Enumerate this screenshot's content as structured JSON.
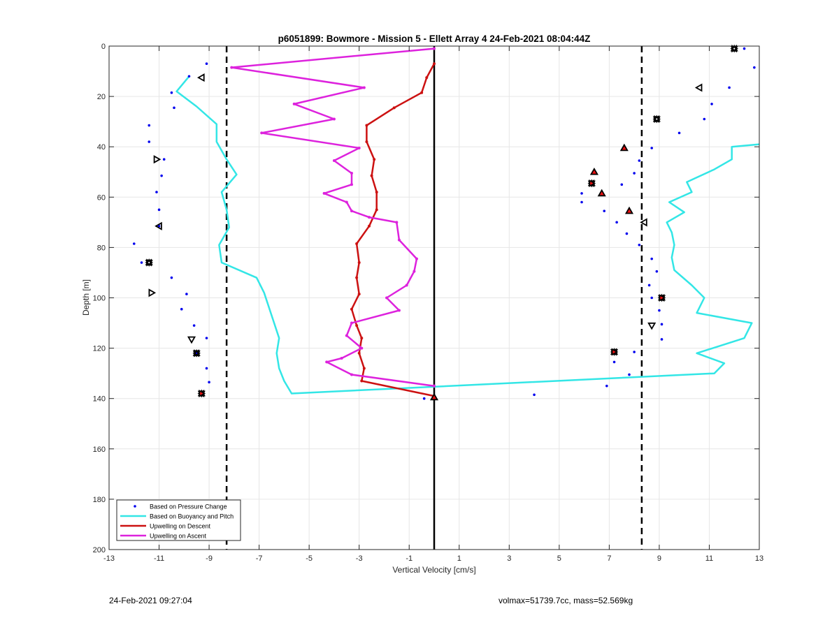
{
  "chart_data": {
    "type": "scatter",
    "title": "p6051899: Bowmore - Mission 5 - Ellett Array 4 24-Feb-2021 08:04:44Z",
    "xlabel": "Vertical Velocity [cm/s]",
    "ylabel": "Depth [m]",
    "xlim": [
      -13,
      13
    ],
    "ylim": [
      200,
      0
    ],
    "x_ticks": [
      -13,
      -11,
      -9,
      -7,
      -5,
      -3,
      -1,
      1,
      3,
      5,
      7,
      9,
      11,
      13
    ],
    "y_ticks": [
      0,
      20,
      40,
      60,
      80,
      100,
      120,
      140,
      160,
      180,
      200
    ],
    "grid": true,
    "legend_position": "bottom-left",
    "reference_lines": {
      "solid_x": 0,
      "dashed_x": [
        -8.3,
        8.3
      ]
    },
    "colors": {
      "pressure": "#0000ee",
      "buoyancy": "#33e6e6",
      "descent": "#cc1111",
      "ascent": "#dd22dd",
      "marker_fill": "#ee1111"
    },
    "series": [
      {
        "name": "Based on Pressure Change",
        "style": "dots",
        "segments": [
          [
            [
              -9.1,
              7
            ],
            [
              -9.8,
              12
            ],
            [
              -10.5,
              18.5
            ],
            [
              -10.4,
              24.5
            ],
            [
              -11.4,
              31.5
            ],
            [
              -11.4,
              38
            ],
            [
              -10.8,
              45
            ],
            [
              -10.9,
              51.5
            ],
            [
              -11.1,
              58
            ],
            [
              -11.0,
              65
            ],
            [
              -11.0,
              71.5
            ],
            [
              -12.0,
              78.5
            ],
            [
              -11.7,
              86
            ],
            [
              -10.5,
              92
            ],
            [
              -9.9,
              98.5
            ],
            [
              -10.1,
              104.5
            ],
            [
              -9.6,
              111
            ],
            [
              -9.1,
              116
            ],
            [
              -9.5,
              122
            ],
            [
              -9.1,
              128
            ],
            [
              -9.0,
              133.5
            ],
            [
              -9.3,
              138
            ],
            [
              -0.4,
              140
            ]
          ],
          [
            [
              12.4,
              1
            ],
            [
              12.8,
              8.5
            ],
            [
              11.8,
              16.5
            ],
            [
              11.1,
              23
            ],
            [
              10.8,
              29
            ],
            [
              9.8,
              34.5
            ],
            [
              8.7,
              40.5
            ],
            [
              8.2,
              45.5
            ],
            [
              8.0,
              50.5
            ],
            [
              7.5,
              55
            ],
            [
              5.9,
              58.5
            ],
            [
              5.9,
              62
            ],
            [
              6.8,
              65.5
            ],
            [
              7.3,
              70
            ],
            [
              7.7,
              74.5
            ],
            [
              8.2,
              79
            ],
            [
              8.7,
              84.5
            ],
            [
              8.9,
              89.5
            ],
            [
              8.6,
              95
            ],
            [
              8.7,
              100
            ],
            [
              9.0,
              105
            ],
            [
              9.1,
              110.5
            ],
            [
              9.1,
              116.5
            ],
            [
              8.0,
              121.5
            ],
            [
              7.2,
              125.5
            ],
            [
              7.8,
              130.5
            ],
            [
              6.9,
              135
            ],
            [
              4.0,
              138.5
            ]
          ]
        ]
      },
      {
        "name": "Based on Buoyancy and Pitch",
        "style": "line",
        "segments": [
          [
            [
              -9.8,
              12
            ],
            [
              -10.3,
              18
            ],
            [
              -9.5,
              24
            ],
            [
              -8.7,
              31
            ],
            [
              -8.7,
              38
            ],
            [
              -8.3,
              45
            ],
            [
              -7.9,
              51
            ],
            [
              -8.5,
              58
            ],
            [
              -8.3,
              65
            ],
            [
              -8.2,
              72
            ],
            [
              -8.6,
              79
            ],
            [
              -8.5,
              86
            ],
            [
              -7.1,
              92
            ],
            [
              -6.8,
              98
            ],
            [
              -6.6,
              104
            ],
            [
              -6.4,
              110
            ],
            [
              -6.2,
              116
            ],
            [
              -6.3,
              122
            ],
            [
              -6.2,
              128
            ],
            [
              -6.0,
              133
            ],
            [
              -5.7,
              138
            ],
            [
              11.2,
              130
            ],
            [
              11.6,
              126
            ],
            [
              10.5,
              122
            ],
            [
              12.4,
              116
            ],
            [
              12.7,
              110
            ],
            [
              10.5,
              106
            ],
            [
              10.8,
              100
            ],
            [
              10.3,
              95
            ],
            [
              9.6,
              89
            ],
            [
              9.5,
              84
            ],
            [
              9.6,
              79
            ],
            [
              9.5,
              74
            ],
            [
              9.3,
              70
            ],
            [
              10.0,
              66
            ],
            [
              9.4,
              62
            ],
            [
              10.3,
              58
            ],
            [
              10.1,
              54
            ],
            [
              11.2,
              49
            ],
            [
              11.9,
              45
            ],
            [
              11.9,
              40
            ],
            [
              13.0,
              39
            ]
          ]
        ]
      },
      {
        "name": "Upwelling on Descent",
        "style": "line",
        "segments": [
          [
            [
              0,
              7
            ],
            [
              -0.3,
              12.5
            ],
            [
              -0.5,
              18.5
            ],
            [
              -1.6,
              24.5
            ],
            [
              -2.7,
              31.5
            ],
            [
              -2.7,
              38
            ],
            [
              -2.4,
              45
            ],
            [
              -2.5,
              51.5
            ],
            [
              -2.3,
              58
            ],
            [
              -2.3,
              65
            ],
            [
              -2.6,
              71.5
            ],
            [
              -3.1,
              78.5
            ],
            [
              -3.0,
              86
            ],
            [
              -3.1,
              92
            ],
            [
              -3.0,
              98.5
            ],
            [
              -3.3,
              104.5
            ],
            [
              -3.1,
              111
            ],
            [
              -2.9,
              116
            ],
            [
              -3.0,
              122
            ],
            [
              -2.8,
              128
            ],
            [
              -2.9,
              133
            ],
            [
              0,
              139
            ]
          ]
        ]
      },
      {
        "name": "Upwelling on Ascent",
        "style": "line",
        "segments": [
          [
            [
              0,
              1
            ],
            [
              -8.1,
              8.5
            ],
            [
              -2.8,
              16.5
            ],
            [
              -5.6,
              23
            ],
            [
              -4.0,
              29
            ],
            [
              -6.9,
              34.5
            ],
            [
              -3.0,
              40.5
            ],
            [
              -4.0,
              45.5
            ],
            [
              -3.3,
              50.5
            ],
            [
              -3.3,
              55
            ],
            [
              -4.4,
              58.5
            ],
            [
              -3.5,
              62
            ],
            [
              -3.3,
              65.5
            ],
            [
              -2.6,
              68
            ],
            [
              -1.5,
              70
            ],
            [
              -1.4,
              77
            ],
            [
              -0.7,
              84.5
            ],
            [
              -0.8,
              89.5
            ],
            [
              -1.1,
              95
            ],
            [
              -1.9,
              100
            ],
            [
              -1.4,
              105
            ],
            [
              -3.3,
              110
            ],
            [
              -3.5,
              115
            ],
            [
              -2.9,
              120
            ],
            [
              -3.7,
              124
            ],
            [
              -4.3,
              125.5
            ],
            [
              -3.3,
              130.5
            ],
            [
              0,
              135
            ]
          ]
        ]
      }
    ],
    "markers": [
      {
        "shape": "left",
        "filled": false,
        "points": [
          [
            -9.3,
            12.5
          ],
          [
            -11.0,
            71.5
          ]
        ]
      },
      {
        "shape": "right",
        "filled": false,
        "points": [
          [
            -11.1,
            45
          ],
          [
            -11.3,
            98
          ]
        ]
      },
      {
        "shape": "down",
        "filled": false,
        "points": [
          [
            -9.7,
            116.5
          ],
          [
            8.7,
            111
          ]
        ]
      },
      {
        "shape": "left",
        "filled": false,
        "points": [
          [
            10.6,
            16.5
          ],
          [
            8.4,
            70
          ]
        ]
      },
      {
        "shape": "star",
        "filled": false,
        "points": [
          [
            -11.4,
            86
          ],
          [
            -9.5,
            122
          ],
          [
            12.0,
            1
          ],
          [
            8.9,
            29
          ]
        ]
      },
      {
        "shape": "up",
        "filled": true,
        "points": [
          [
            0,
            139.5
          ],
          [
            7.6,
            40.5
          ],
          [
            6.4,
            50
          ],
          [
            6.7,
            58.5
          ],
          [
            7.8,
            65.5
          ]
        ]
      },
      {
        "shape": "star",
        "filled": true,
        "points": [
          [
            -9.3,
            138
          ],
          [
            6.3,
            54.5
          ],
          [
            9.1,
            100
          ],
          [
            7.2,
            121.5
          ]
        ]
      }
    ]
  },
  "footer": {
    "timestamp": "24-Feb-2021 09:27:04",
    "stats": "volmax=51739.7cc, mass=52.569kg"
  }
}
